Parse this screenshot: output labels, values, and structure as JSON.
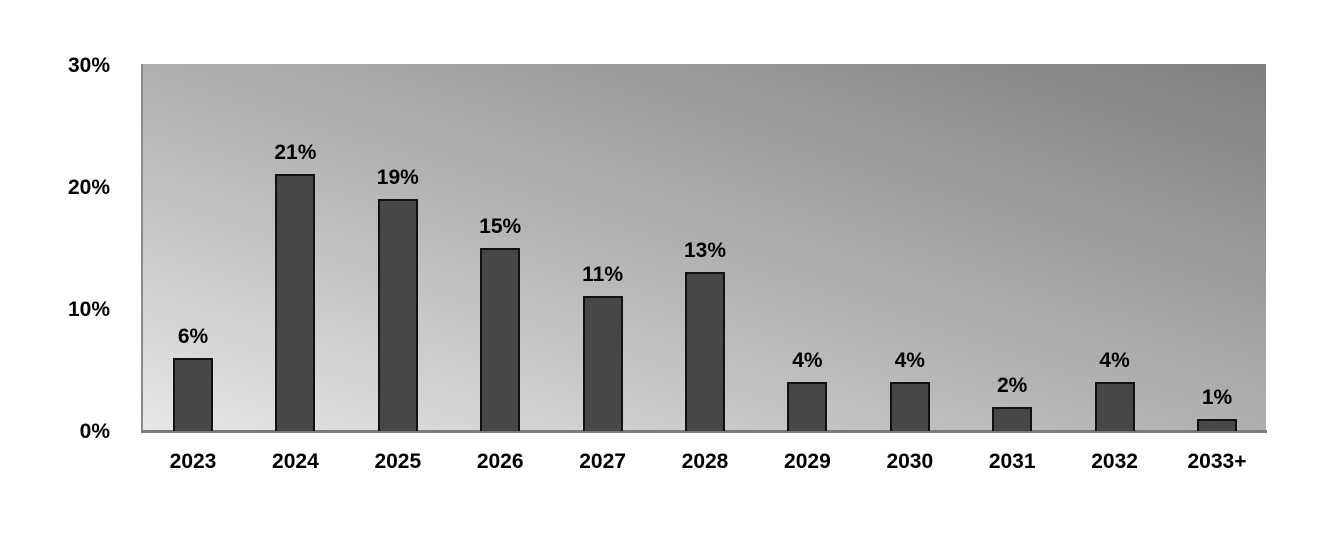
{
  "chart_data": {
    "type": "bar",
    "title": "",
    "xlabel": "",
    "ylabel": "",
    "categories": [
      "2023",
      "2024",
      "2025",
      "2026",
      "2027",
      "2028",
      "2029",
      "2030",
      "2031",
      "2032",
      "2033+"
    ],
    "values": [
      6,
      21,
      19,
      15,
      11,
      13,
      4,
      4,
      2,
      4,
      1
    ],
    "value_labels": [
      "6%",
      "21%",
      "19%",
      "15%",
      "11%",
      "13%",
      "4%",
      "4%",
      "2%",
      "4%",
      "1%"
    ],
    "ylim": [
      0,
      30
    ],
    "yticks": [
      "0%",
      "10%",
      "20%",
      "30%"
    ],
    "grid": false,
    "legend": null,
    "colors": {
      "bar": "#474747",
      "bar_border": "#111111",
      "plot_bg_light": "#e6e7e8",
      "plot_bg_dark": "#7f7f7f",
      "axis": "#7a7a7a"
    }
  }
}
